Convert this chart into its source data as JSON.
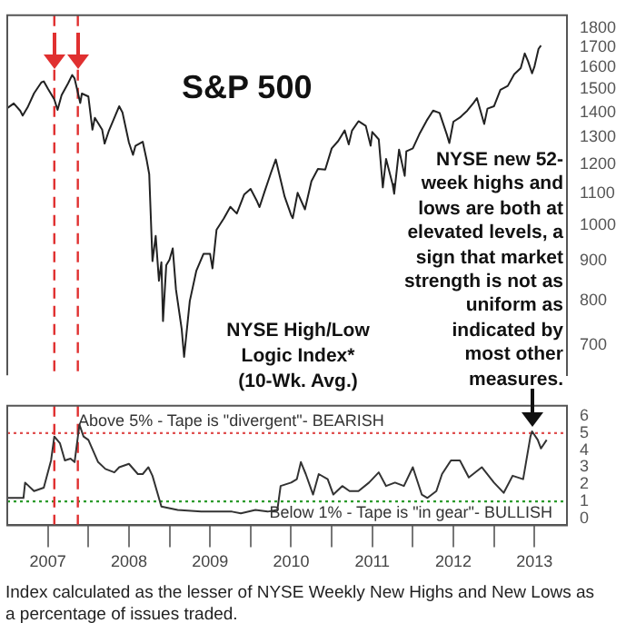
{
  "chart_data": [
    {
      "type": "line",
      "title": "S&P 500",
      "annotations": [
        "NYSE new 52-week highs and lows are both at elevated levels, a sign that market strength is not as uniform as indicated by most other measures."
      ],
      "color": "#222222",
      "marker": "none",
      "log": true,
      "tick_labels": "y",
      "xlim": [
        2007,
        2013.9
      ],
      "ylim": [
        640,
        1870
      ],
      "yticks": [
        700,
        800,
        900,
        1000,
        1100,
        1200,
        1300,
        1400,
        1500,
        1600,
        1700,
        1800
      ],
      "x": [
        2007.0,
        2007.08,
        2007.16,
        2007.19,
        2007.25,
        2007.33,
        2007.42,
        2007.45,
        2007.5,
        2007.58,
        2007.62,
        2007.67,
        2007.75,
        2007.8,
        2007.83,
        2007.9,
        2007.92,
        2008.0,
        2008.05,
        2008.08,
        2008.17,
        2008.2,
        2008.25,
        2008.33,
        2008.38,
        2008.42,
        2008.5,
        2008.55,
        2008.58,
        2008.67,
        2008.72,
        2008.75,
        2008.79,
        2008.83,
        2008.87,
        2008.9,
        2008.92,
        2008.96,
        2009.0,
        2009.04,
        2009.08,
        2009.15,
        2009.18,
        2009.25,
        2009.33,
        2009.42,
        2009.5,
        2009.53,
        2009.58,
        2009.67,
        2009.75,
        2009.83,
        2009.92,
        2010.0,
        2010.08,
        2010.11,
        2010.17,
        2010.25,
        2010.31,
        2010.42,
        2010.5,
        2010.52,
        2010.58,
        2010.67,
        2010.75,
        2010.83,
        2010.92,
        2011.0,
        2011.08,
        2011.16,
        2011.21,
        2011.25,
        2011.33,
        2011.42,
        2011.48,
        2011.5,
        2011.58,
        2011.63,
        2011.67,
        2011.75,
        2011.77,
        2011.83,
        2011.9,
        2011.92,
        2012.0,
        2012.08,
        2012.17,
        2012.25,
        2012.33,
        2012.42,
        2012.45,
        2012.5,
        2012.58,
        2012.67,
        2012.75,
        2012.79,
        2012.83,
        2012.88,
        2012.92,
        2013.0,
        2013.08,
        2013.17,
        2013.25,
        2013.33,
        2013.38,
        2013.42,
        2013.47,
        2013.5,
        2013.55,
        2013.58
      ],
      "values": [
        1418,
        1438,
        1407,
        1387,
        1421,
        1482,
        1531,
        1536,
        1503,
        1455,
        1411,
        1474,
        1527,
        1565,
        1549,
        1440,
        1481,
        1468,
        1330,
        1378,
        1330,
        1276,
        1323,
        1386,
        1426,
        1400,
        1280,
        1234,
        1267,
        1283,
        1213,
        1165,
        899,
        969,
        848,
        896,
        752,
        888,
        903,
        934,
        826,
        735,
        676,
        798,
        873,
        919,
        919,
        880,
        987,
        1021,
        1057,
        1036,
        1096,
        1115,
        1074,
        1056,
        1104,
        1169,
        1217,
        1089,
        1031,
        1022,
        1102,
        1049,
        1141,
        1183,
        1181,
        1258,
        1286,
        1327,
        1273,
        1326,
        1364,
        1345,
        1268,
        1321,
        1292,
        1120,
        1219,
        1131,
        1099,
        1253,
        1159,
        1247,
        1258,
        1312,
        1366,
        1408,
        1398,
        1310,
        1278,
        1362,
        1379,
        1407,
        1441,
        1461,
        1412,
        1353,
        1416,
        1426,
        1498,
        1515,
        1569,
        1598,
        1669,
        1631,
        1573,
        1606,
        1692,
        1709
      ],
      "ref_lines": [
        {
          "axis": "x",
          "value": 2007.58,
          "color": "#e03030",
          "line_style": "dashed"
        },
        {
          "axis": "x",
          "value": 2007.87,
          "color": "#e03030",
          "line_style": "dashed"
        }
      ]
    },
    {
      "type": "line",
      "title": "NYSE High/Low Logic Index*",
      "subtitle": "(10-Wk. Avg.)",
      "annotations": [
        "Index calculated as the lesser of NYSE Weekly New Highs and New Lows as a percentage of issues traded."
      ],
      "color": "#333333",
      "marker": "none",
      "xlim": [
        2007,
        2013.9
      ],
      "ylim": [
        -0.4,
        6.6
      ],
      "yticks": [
        0,
        1,
        2,
        3,
        4,
        5,
        6
      ],
      "xticks": [
        {
          "value": 2007.5,
          "label": "2007"
        },
        {
          "value": 2008,
          "label": null
        },
        {
          "value": 2008.5,
          "label": "2008"
        },
        {
          "value": 2009,
          "label": null
        },
        {
          "value": 2009.5,
          "label": "2009"
        },
        {
          "value": 2010,
          "label": null
        },
        {
          "value": 2010.5,
          "label": "2010"
        },
        {
          "value": 2011,
          "label": null
        },
        {
          "value": 2011.5,
          "label": "2011"
        },
        {
          "value": 2012,
          "label": null
        },
        {
          "value": 2012.5,
          "label": "2012"
        },
        {
          "value": 2013,
          "label": null
        },
        {
          "value": 2013.5,
          "label": "2013"
        }
      ],
      "x": [
        2007.0,
        2007.2,
        2007.22,
        2007.33,
        2007.45,
        2007.54,
        2007.58,
        2007.65,
        2007.71,
        2007.78,
        2007.83,
        2007.89,
        2007.94,
        2008.0,
        2008.12,
        2008.21,
        2008.32,
        2008.38,
        2008.5,
        2008.61,
        2008.67,
        2008.74,
        2008.79,
        2008.9,
        2009.1,
        2009.39,
        2009.77,
        2009.88,
        2010.06,
        2010.21,
        2010.33,
        2010.37,
        2010.5,
        2010.57,
        2010.62,
        2010.68,
        2010.77,
        2010.84,
        2010.95,
        2011.02,
        2011.13,
        2011.22,
        2011.33,
        2011.46,
        2011.58,
        2011.67,
        2011.78,
        2011.89,
        2012.0,
        2012.11,
        2012.18,
        2012.29,
        2012.36,
        2012.47,
        2012.58,
        2012.69,
        2012.85,
        2013.0,
        2013.12,
        2013.23,
        2013.36,
        2013.45,
        2013.47,
        2013.54,
        2013.58,
        2013.65
      ],
      "values": [
        1.2,
        1.2,
        2.1,
        1.6,
        1.8,
        3.4,
        4.8,
        4.4,
        3.4,
        3.5,
        3.3,
        5.5,
        4.8,
        4.6,
        3.3,
        2.9,
        2.7,
        3.0,
        3.2,
        2.6,
        2.6,
        3.0,
        2.5,
        0.7,
        0.5,
        0.4,
        0.4,
        0.3,
        0.5,
        0.4,
        0.5,
        1.9,
        2.1,
        2.3,
        3.3,
        2.6,
        1.4,
        2.6,
        2.3,
        1.4,
        1.9,
        1.6,
        1.6,
        2.1,
        2.7,
        1.9,
        2.1,
        1.9,
        3.0,
        1.4,
        1.2,
        1.6,
        2.6,
        3.4,
        3.4,
        2.4,
        3.0,
        2.1,
        1.5,
        2.5,
        2.3,
        4.8,
        5.1,
        4.6,
        4.1,
        4.6
      ],
      "ref_lines": [
        {
          "axis": "y",
          "value": 5,
          "label": "Above 5% - Tape is \"divergent\"- BEARISH",
          "color": "#e05050",
          "line_style": "dotted"
        },
        {
          "axis": "y",
          "value": 1,
          "label": "Below 1% - Tape is \"in gear\"- BULLISH",
          "color": "#2a9a2a",
          "line_style": "dotted"
        },
        {
          "axis": "x",
          "value": 2007.58,
          "color": "#e03030",
          "line_style": "dashed"
        },
        {
          "axis": "x",
          "value": 2007.87,
          "color": "#e03030",
          "line_style": "dashed"
        }
      ]
    }
  ]
}
